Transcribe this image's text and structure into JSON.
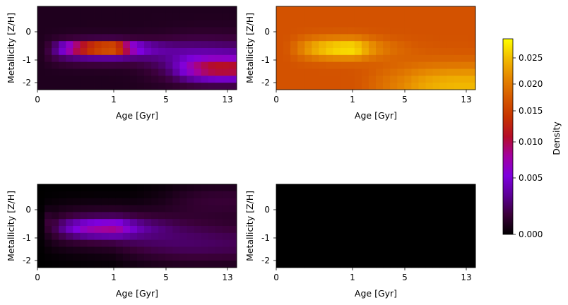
{
  "chart_data": {
    "type": "heatmap",
    "panels": [
      {
        "xlabel": "Age [Gyr]",
        "ylabel": "Metallicity [Z/H]",
        "xticks": [
          "0",
          "1",
          "5",
          "13"
        ],
        "yticks": [
          "0",
          "-1",
          "-2"
        ],
        "components": [
          {
            "age": 1.0,
            "metallicity": -0.72,
            "width_age": 0.28,
            "width_metal": 0.13,
            "amplitude": 0.02
          },
          {
            "age": 1.0,
            "metallicity": -0.85,
            "width_age": 0.5,
            "width_metal": 0.32,
            "amplitude": 0.006
          },
          {
            "age": 12.5,
            "metallicity": -1.55,
            "width_age": 0.18,
            "width_metal": 0.3,
            "amplitude": 0.01
          },
          {
            "age": 11.0,
            "metallicity": -1.2,
            "width_age": 0.3,
            "width_metal": 0.6,
            "amplitude": 0.004
          }
        ],
        "background": 0.0015
      },
      {
        "xlabel": "Age [Gyr]",
        "ylabel": "Metallicity [Z/H]",
        "xticks": [
          "0",
          "1",
          "5",
          "13"
        ],
        "yticks": [
          "0",
          "-1",
          "-2"
        ],
        "components": [
          {
            "age": 1.0,
            "metallicity": -0.75,
            "width_age": 0.35,
            "width_metal": 0.3,
            "amplitude": 0.008
          },
          {
            "age": 13.0,
            "metallicity": -2.2,
            "width_age": 0.4,
            "width_metal": 0.6,
            "amplitude": 0.006
          }
        ],
        "background": 0.019
      },
      {
        "xlabel": "Age [Gyr]",
        "ylabel": "Metallicity [Z/H]",
        "xticks": [
          "0",
          "1",
          "5",
          "13"
        ],
        "yticks": [
          "0",
          "-1",
          "-2"
        ],
        "components": [
          {
            "age": 1.0,
            "metallicity": -0.8,
            "width_age": 0.32,
            "width_metal": 0.22,
            "amplitude": 0.007
          },
          {
            "age": 1.0,
            "metallicity": -0.8,
            "width_age": 0.6,
            "width_metal": 0.55,
            "amplitude": 0.0045
          },
          {
            "age": 10.0,
            "metallicity": -1.5,
            "width_age": 0.5,
            "width_metal": 0.6,
            "amplitude": 0.0035
          },
          {
            "age": 13.0,
            "metallicity": 0.3,
            "width_age": 0.3,
            "width_metal": 0.5,
            "amplitude": 0.0025
          },
          {
            "age": 0.1,
            "metallicity": -0.5,
            "width_age": 0.12,
            "width_metal": 0.3,
            "amplitude": 0.0025
          }
        ],
        "background": 0.0
      },
      {
        "xlabel": "Age [Gyr]",
        "ylabel": "Metallicity [Z/H]",
        "xticks": [
          "0",
          "1",
          "5",
          "13"
        ],
        "yticks": [
          "0",
          "-1",
          "-2"
        ],
        "components": [],
        "background": 0.0
      }
    ],
    "colorbar": {
      "label": "Density",
      "colormap": "gnuplot",
      "range": [
        0.0,
        0.028
      ],
      "ticks": [
        "0.000",
        "0.005",
        "0.010",
        "0.015",
        "0.020",
        "0.025"
      ]
    }
  }
}
